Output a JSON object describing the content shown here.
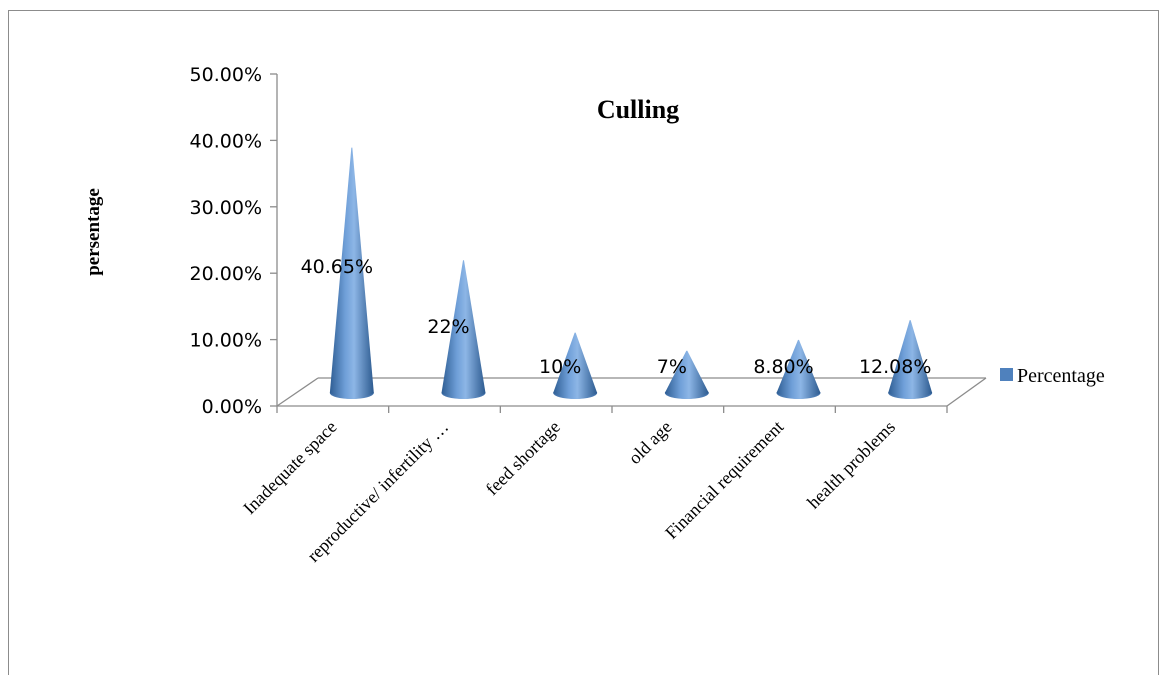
{
  "chart_data": {
    "type": "bar",
    "bar_shape": "cone-3d",
    "title": "Culling",
    "xlabel": "",
    "ylabel": "persentage",
    "ylim": [
      0,
      50
    ],
    "y_ticks": [
      "0.00%",
      "10.00%",
      "20.00%",
      "30.00%",
      "40.00%",
      "50.00%"
    ],
    "categories": [
      "Inadequate space",
      "reproductive/ infertility …",
      "feed shortage",
      "old age",
      "Financial requirement",
      "health problems"
    ],
    "series": [
      {
        "name": "Percentage",
        "values": [
          40.65,
          22,
          10,
          7,
          8.8,
          12.08
        ],
        "data_labels": [
          "40.65%",
          "22%",
          "10%",
          "7%",
          "8.80%",
          "12.08%"
        ],
        "color": "#4f81bd"
      }
    ],
    "legend": "right",
    "grid": false
  }
}
